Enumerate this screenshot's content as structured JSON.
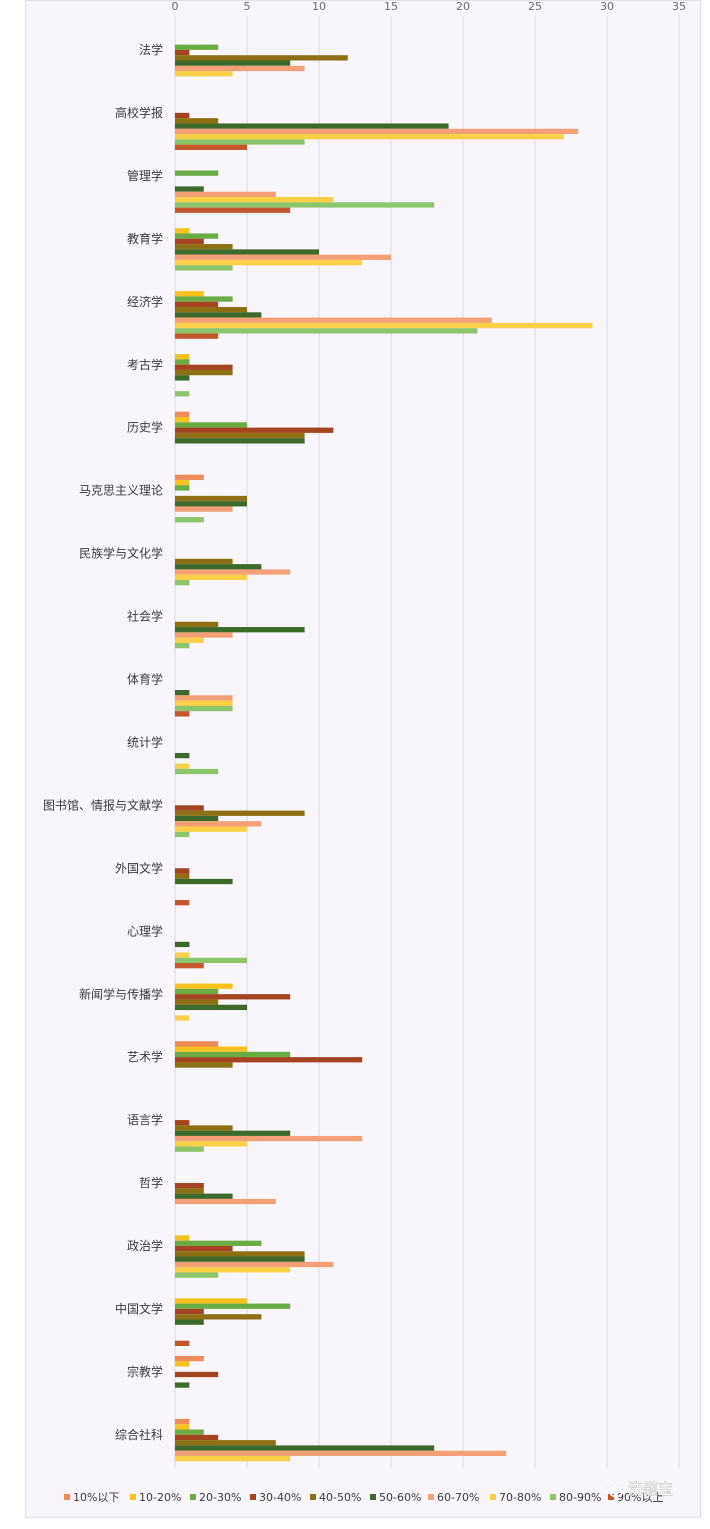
{
  "chart_data": {
    "type": "bar",
    "orientation": "horizontal",
    "xlim": [
      0,
      35
    ],
    "x_ticks": [
      "0",
      "5",
      "10",
      "15",
      "20",
      "25",
      "30",
      "35"
    ],
    "grid": true,
    "legend_position": "bottom",
    "categories": [
      "法学",
      "高校学报",
      "管理学",
      "教育学",
      "经济学",
      "考古学",
      "历史学",
      "马克思主义理论",
      "民族学与文化学",
      "社会学",
      "体育学",
      "统计学",
      "图书馆、情报与文献学",
      "外国文学",
      "心理学",
      "新闻学与传播学",
      "艺术学",
      "语言学",
      "哲学",
      "政治学",
      "中国文学",
      "宗教学",
      "综合社科"
    ],
    "series": [
      {
        "name": "10%以下",
        "color": "#f08b5a",
        "values": [
          0,
          0,
          0,
          0,
          0,
          0,
          1,
          2,
          0,
          0,
          0,
          0,
          0,
          0,
          0,
          0,
          3,
          0,
          0,
          0,
          0,
          2,
          1
        ]
      },
      {
        "name": "10-20%",
        "color": "#f7c21d",
        "values": [
          0,
          0,
          0,
          1,
          2,
          1,
          1,
          1,
          0,
          0,
          0,
          0,
          0,
          0,
          0,
          4,
          5,
          0,
          0,
          1,
          5,
          1,
          1
        ]
      },
      {
        "name": "20-30%",
        "color": "#6aab43",
        "values": [
          3,
          0,
          3,
          3,
          4,
          1,
          5,
          1,
          0,
          0,
          0,
          0,
          0,
          0,
          0,
          3,
          8,
          0,
          0,
          6,
          8,
          0,
          2
        ]
      },
      {
        "name": "30-40%",
        "color": "#a54420",
        "values": [
          1,
          1,
          0,
          2,
          3,
          4,
          11,
          0,
          0,
          0,
          0,
          0,
          2,
          1,
          0,
          8,
          13,
          1,
          2,
          4,
          2,
          3,
          3
        ]
      },
      {
        "name": "40-50%",
        "color": "#8d7014",
        "values": [
          12,
          3,
          0,
          4,
          5,
          4,
          9,
          5,
          4,
          3,
          0,
          0,
          9,
          1,
          0,
          3,
          4,
          4,
          2,
          9,
          6,
          0,
          7
        ]
      },
      {
        "name": "50-60%",
        "color": "#3d6a2a",
        "values": [
          8,
          19,
          2,
          10,
          6,
          1,
          9,
          5,
          6,
          9,
          1,
          1,
          3,
          4,
          1,
          5,
          0,
          8,
          4,
          9,
          2,
          1,
          18
        ]
      },
      {
        "name": "60-70%",
        "color": "#f3a077",
        "values": [
          9,
          28,
          7,
          15,
          22,
          0,
          0,
          4,
          8,
          4,
          4,
          0,
          6,
          0,
          0,
          0,
          0,
          13,
          7,
          11,
          0,
          0,
          23
        ]
      },
      {
        "name": "70-80%",
        "color": "#fbd049",
        "values": [
          4,
          27,
          11,
          13,
          29,
          0,
          0,
          0,
          5,
          2,
          4,
          1,
          5,
          0,
          1,
          1,
          0,
          5,
          0,
          8,
          0,
          0,
          8
        ]
      },
      {
        "name": "80-90%",
        "color": "#8dc56c",
        "values": [
          0,
          9,
          18,
          4,
          21,
          1,
          0,
          2,
          1,
          1,
          4,
          3,
          1,
          0,
          5,
          0,
          0,
          2,
          0,
          3,
          0,
          0,
          0
        ]
      },
      {
        "name": "90%以上",
        "color": "#c4562a",
        "values": [
          0,
          5,
          8,
          0,
          3,
          0,
          0,
          0,
          0,
          0,
          1,
          0,
          0,
          1,
          2,
          0,
          0,
          0,
          0,
          0,
          1,
          0,
          0
        ]
      }
    ]
  },
  "watermark": {
    "icon": "chat-bubbles-icon",
    "text": "洗题宝"
  }
}
